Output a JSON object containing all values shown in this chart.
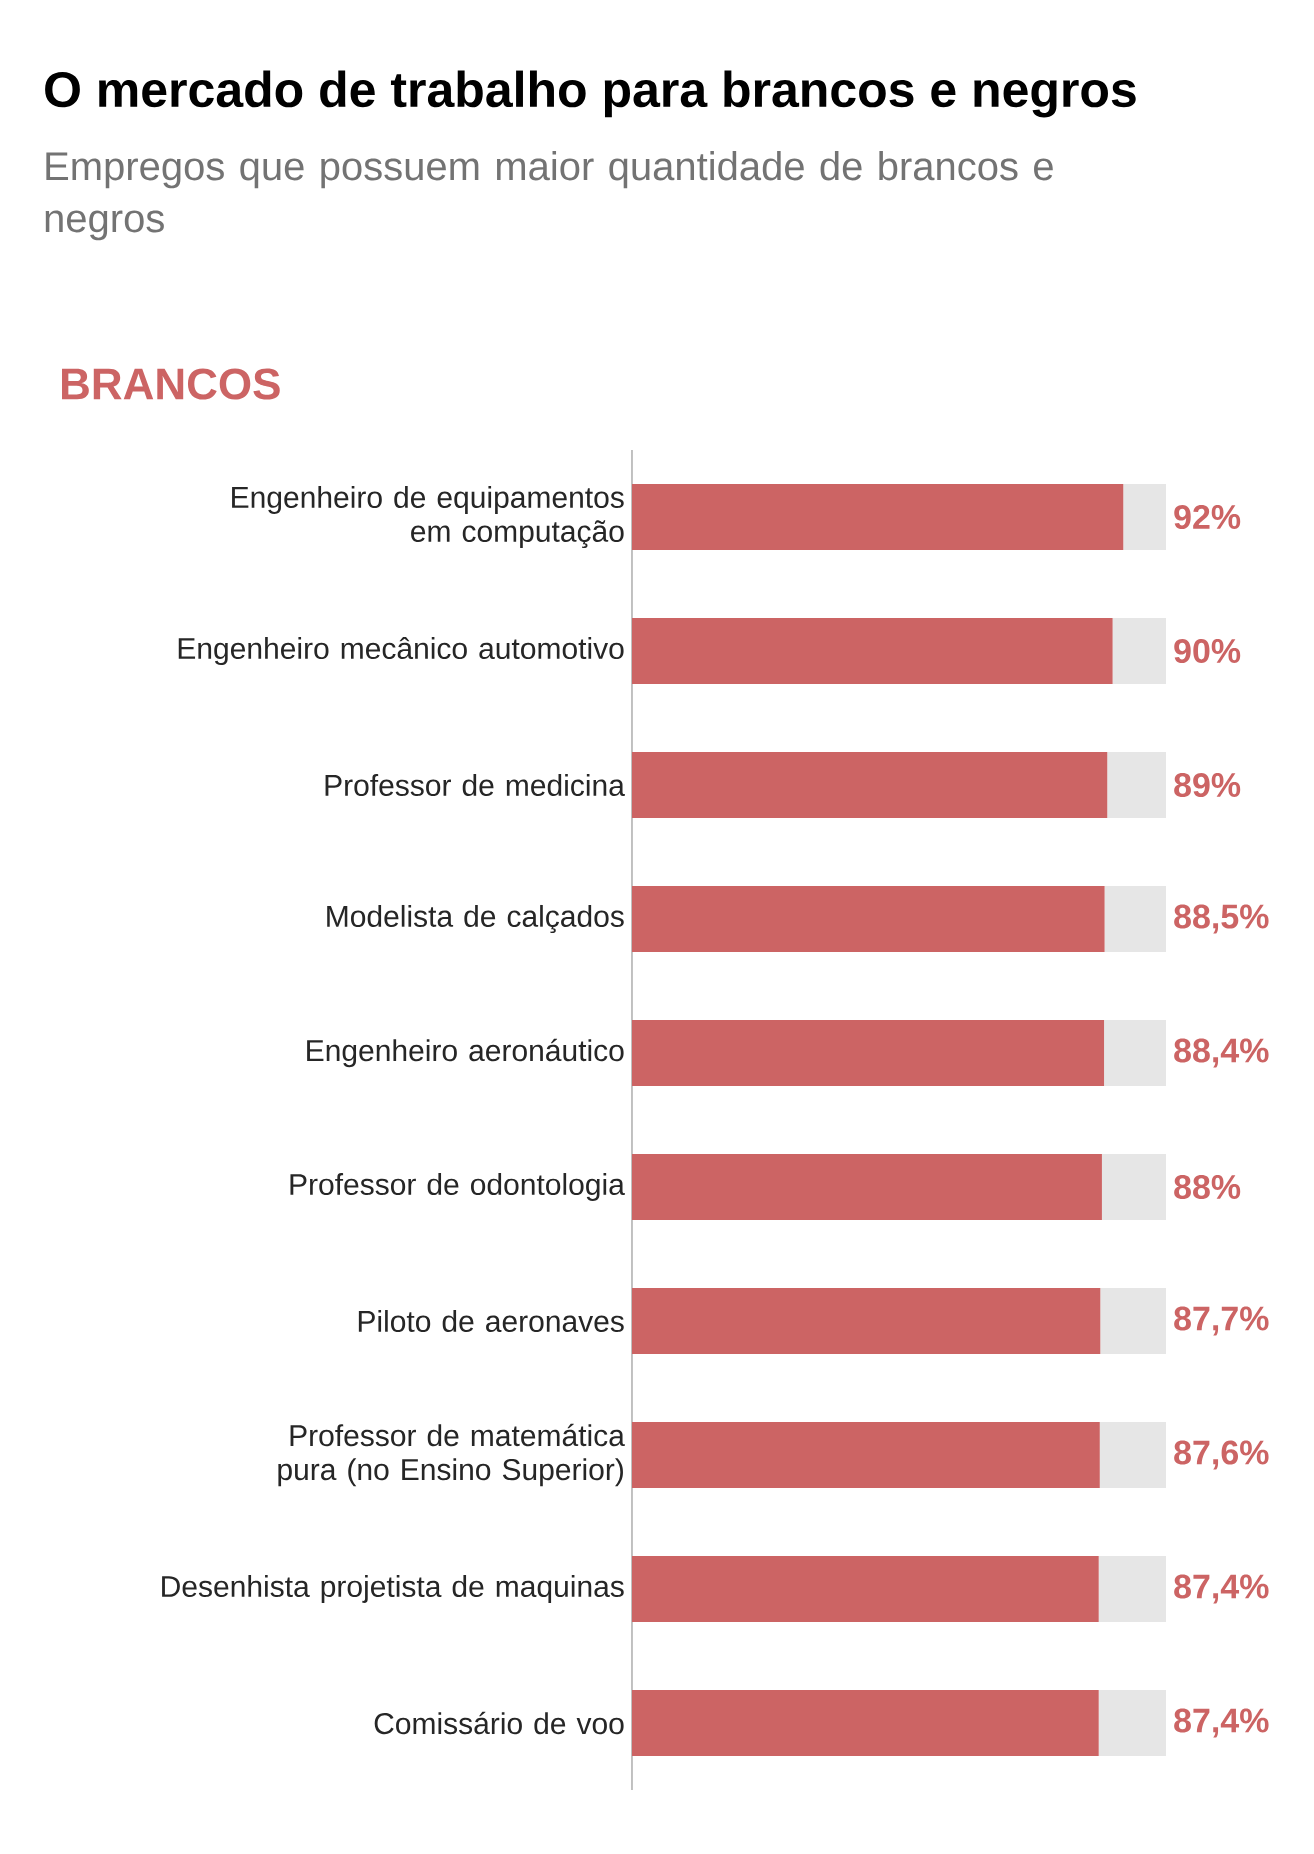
{
  "chart_data": {
    "type": "bar",
    "orientation": "horizontal",
    "stacked": true,
    "title": "O mercado de trabalho para brancos e negros",
    "subtitle": "Empregos que possuem maior quantidade de brancos e negros",
    "annotations": [
      "BRANCOS"
    ],
    "categories": [
      "Engenheiro de equipamentos em computação",
      "Engenheiro mecânico automotivo",
      "Professor de medicina",
      "Modelista de calçados",
      "Engenheiro aeronáutico",
      "Professor de odontologia",
      "Piloto de aeronaves",
      "Professor de matemática pura (no Ensino Superior)",
      "Desenhista projetista de maquinas",
      "Comissário de voo"
    ],
    "series": [
      {
        "color": "#cc6464",
        "values": [
          92,
          90,
          89,
          88.5,
          88.4,
          88,
          87.7,
          87.6,
          87.4,
          87.4
        ],
        "value_labels": [
          "92%",
          "90%",
          "89%",
          "88,5%",
          "88,4%",
          "88%",
          "87,7%",
          "87,6%",
          "87,4%",
          "87,4%"
        ]
      },
      {
        "color": "#e6e6e6",
        "values": [
          8,
          10,
          11,
          11.5,
          11.6,
          12,
          12.3,
          12.4,
          12.6,
          12.6
        ]
      }
    ],
    "xlim": [
      0,
      100
    ],
    "tick_labels": "y"
  }
}
